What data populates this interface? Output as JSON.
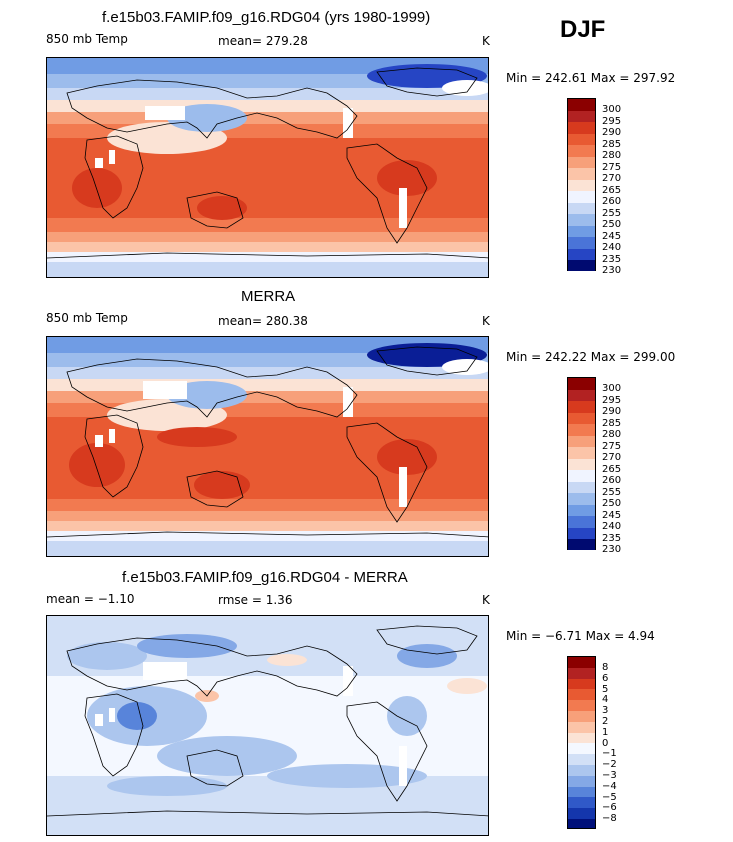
{
  "season": "DJF",
  "panels": [
    {
      "title": "f.e15b03.FAMIP.f09_g16.RDG04 (yrs 1980-1999)",
      "left_label": "850 mb Temp",
      "center_label": "mean= 279.28",
      "units": "K",
      "minmax": "Min = 242.61 Max = 297.92",
      "levels": [
        "300",
        "295",
        "290",
        "285",
        "280",
        "275",
        "270",
        "265",
        "260",
        "255",
        "250",
        "245",
        "240",
        "235",
        "230"
      ]
    },
    {
      "title": "MERRA",
      "left_label": "850 mb Temp",
      "center_label": "mean= 280.38",
      "units": "K",
      "minmax": "Min = 242.22 Max = 299.00",
      "levels": [
        "300",
        "295",
        "290",
        "285",
        "280",
        "275",
        "270",
        "265",
        "260",
        "255",
        "250",
        "245",
        "240",
        "235",
        "230"
      ]
    },
    {
      "title": "f.e15b03.FAMIP.f09_g16.RDG04 - MERRA",
      "left_label": "mean =  −1.10",
      "center_label": "rmse =   1.36",
      "units": "K",
      "minmax": "Min =  −6.71 Max =   4.94",
      "levels": [
        "8",
        "6",
        "5",
        "4",
        "3",
        "2",
        "1",
        "0",
        "−1",
        "−2",
        "−3",
        "−4",
        "−5",
        "−6",
        "−8"
      ]
    }
  ],
  "colors": {
    "temp_scale": [
      "#8b0000",
      "#b22222",
      "#d73a1e",
      "#e85a32",
      "#f27a50",
      "#f7a07a",
      "#fbc4a8",
      "#fbe3d5",
      "#f0f4ff",
      "#c8d8f4",
      "#9cbcec",
      "#709ce4",
      "#4a74d8",
      "#2645c4",
      "#0a1e96",
      "#000a70"
    ],
    "diff_scale": [
      "#8b0000",
      "#b22222",
      "#d73a1e",
      "#e85a32",
      "#f27a50",
      "#f7a07a",
      "#fbc4a8",
      "#fbe3d5",
      "#f4f8ff",
      "#d2e0f6",
      "#acc6ee",
      "#84a8e6",
      "#5884da",
      "#3059c8",
      "#1436ac",
      "#00107a"
    ]
  }
}
